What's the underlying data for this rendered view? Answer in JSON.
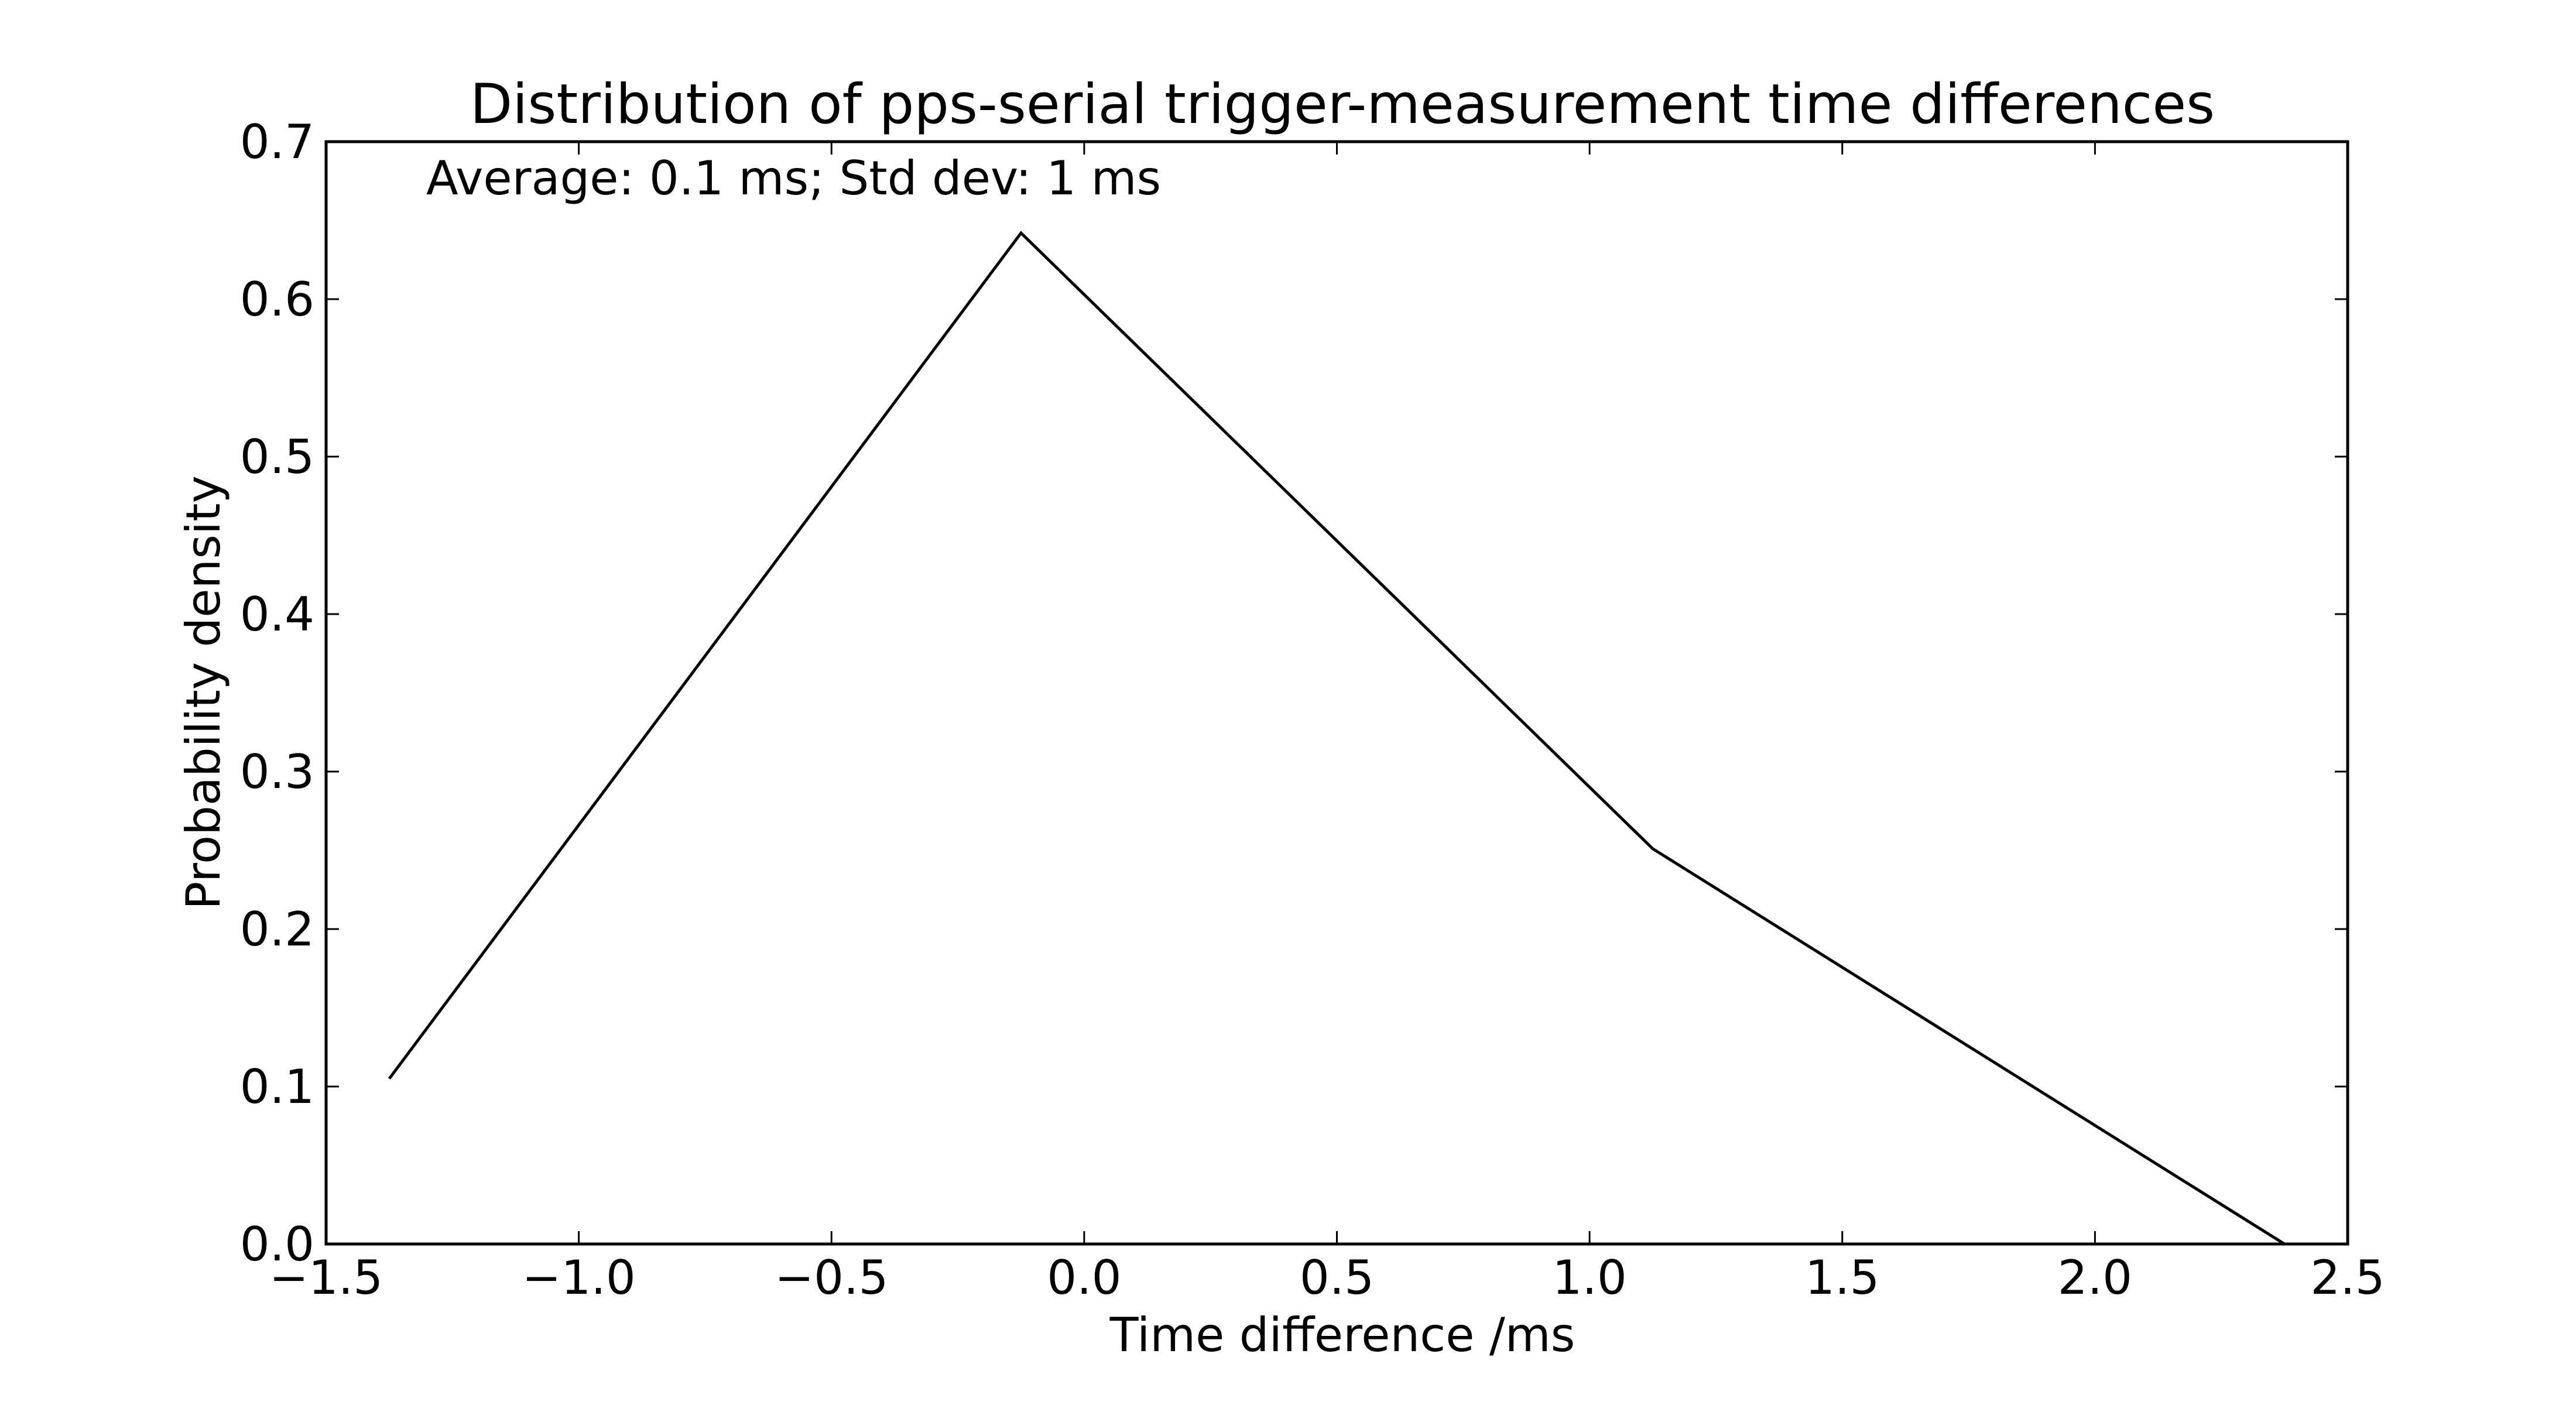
{
  "chart_data": {
    "type": "line",
    "title": "Distribution of pps-serial trigger-measurement time differences",
    "xlabel": "Time difference /ms",
    "ylabel": "Probability density",
    "annotation": "Average: 0.1 ms;  Std dev: 1 ms",
    "xlim": [
      -1.5,
      2.5
    ],
    "ylim": [
      0.0,
      0.7
    ],
    "xticks": [
      -1.5,
      -1.0,
      -0.5,
      0.0,
      0.5,
      1.0,
      1.5,
      2.0,
      2.5
    ],
    "yticks": [
      0.0,
      0.1,
      0.2,
      0.3,
      0.4,
      0.5,
      0.6,
      0.7
    ],
    "xtick_labels": [
      "−1.5",
      "−1.0",
      "−0.5",
      "0.0",
      "0.5",
      "1.0",
      "1.5",
      "2.0",
      "2.5"
    ],
    "ytick_labels": [
      "0.0",
      "0.1",
      "0.2",
      "0.3",
      "0.4",
      "0.5",
      "0.6",
      "0.7"
    ],
    "grid": false,
    "series": [
      {
        "x": [
          -1.375,
          -0.125,
          1.125,
          2.375
        ],
        "y": [
          0.105,
          0.642,
          0.251,
          0.0
        ]
      }
    ],
    "colors": {
      "line": "#000000",
      "axes": "#000000",
      "background": "#ffffff"
    }
  }
}
